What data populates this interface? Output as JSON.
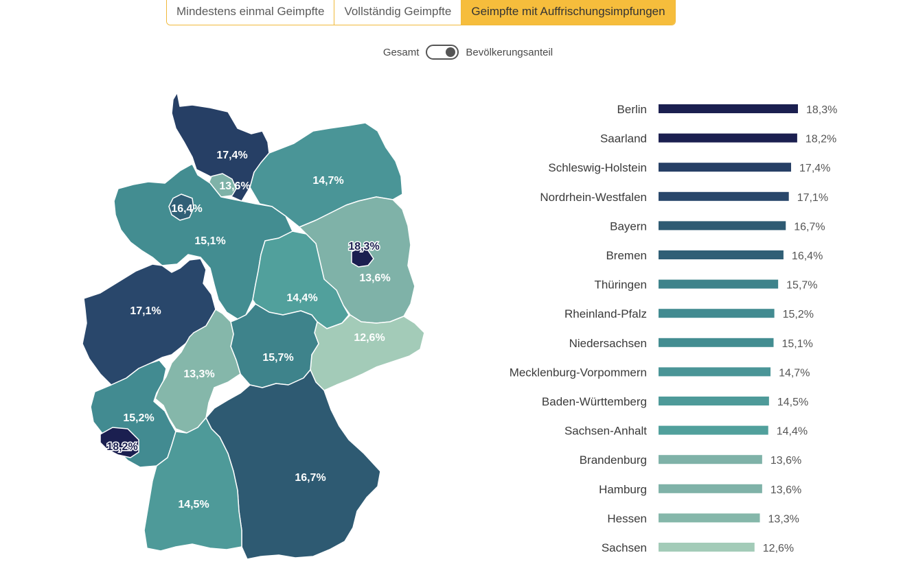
{
  "tabs": [
    {
      "label": "Mindestens einmal Geimpfte",
      "active": false
    },
    {
      "label": "Vollständig Geimpfte",
      "active": false
    },
    {
      "label": "Geimpfte mit Auffrischungsimpfungen",
      "active": true
    }
  ],
  "toggle": {
    "left_label": "Gesamt",
    "right_label": "Bevölkerungsanteil",
    "state": "right"
  },
  "colors": {
    "accent": "#f6bd3c",
    "darkest": "#1b1f50",
    "lightest": "#a3cbb8"
  },
  "chart_data": {
    "type": "bar",
    "orientation": "horizontal",
    "categories": [
      "Berlin",
      "Saarland",
      "Schleswig-Holstein",
      "Nordrhein-Westfalen",
      "Bayern",
      "Bremen",
      "Thüringen",
      "Rheinland-Pfalz",
      "Niedersachsen",
      "Mecklenburg-Vorpommern",
      "Baden-Württemberg",
      "Sachsen-Anhalt",
      "Brandenburg",
      "Hamburg",
      "Hessen",
      "Sachsen"
    ],
    "values": [
      18.3,
      18.2,
      17.4,
      17.1,
      16.7,
      16.4,
      15.7,
      15.2,
      15.1,
      14.7,
      14.5,
      14.4,
      13.6,
      13.6,
      13.3,
      12.6
    ],
    "value_labels": [
      "18,3%",
      "18,2%",
      "17,4%",
      "17,1%",
      "16,7%",
      "16,4%",
      "15,7%",
      "15,2%",
      "15,1%",
      "14,7%",
      "14,5%",
      "14,4%",
      "13,6%",
      "13,6%",
      "13,3%",
      "12,6%"
    ],
    "colors": [
      "#1b1f50",
      "#1b1f50",
      "#263f65",
      "#29476b",
      "#2e5a72",
      "#305f76",
      "#3e838b",
      "#428b91",
      "#438d91",
      "#4a9597",
      "#4e9a99",
      "#51a09c",
      "#7fb2a8",
      "#7fb2a8",
      "#85b7aa",
      "#a3cbb8"
    ],
    "xlim": [
      0,
      18.3
    ]
  },
  "map": {
    "regions": [
      {
        "name": "Schleswig-Holstein",
        "label": "17,4%",
        "color": "#263f65"
      },
      {
        "name": "Hamburg",
        "label": "13,6%",
        "color": "#7fb2a8"
      },
      {
        "name": "Mecklenburg-Vorpommern",
        "label": "14,7%",
        "color": "#4a9597"
      },
      {
        "name": "Bremen",
        "label": "16,4%",
        "color": "#305f76"
      },
      {
        "name": "Niedersachsen",
        "label": "15,1%",
        "color": "#438d91"
      },
      {
        "name": "Berlin",
        "label": "18,3%",
        "color": "#1b1f50"
      },
      {
        "name": "Brandenburg",
        "label": "13,6%",
        "color": "#7fb2a8"
      },
      {
        "name": "Sachsen-Anhalt",
        "label": "14,4%",
        "color": "#51a09c"
      },
      {
        "name": "Nordrhein-Westfalen",
        "label": "17,1%",
        "color": "#29476b"
      },
      {
        "name": "Sachsen",
        "label": "12,6%",
        "color": "#a3cbb8"
      },
      {
        "name": "Thüringen",
        "label": "15,7%",
        "color": "#3e838b"
      },
      {
        "name": "Hessen",
        "label": "13,3%",
        "color": "#85b7aa"
      },
      {
        "name": "Rheinland-Pfalz",
        "label": "15,2%",
        "color": "#428b91"
      },
      {
        "name": "Saarland",
        "label": "18,2%",
        "color": "#1b1f50"
      },
      {
        "name": "Bayern",
        "label": "16,7%",
        "color": "#2e5a72"
      },
      {
        "name": "Baden-Württemberg",
        "label": "14,5%",
        "color": "#4e9a99"
      }
    ]
  }
}
